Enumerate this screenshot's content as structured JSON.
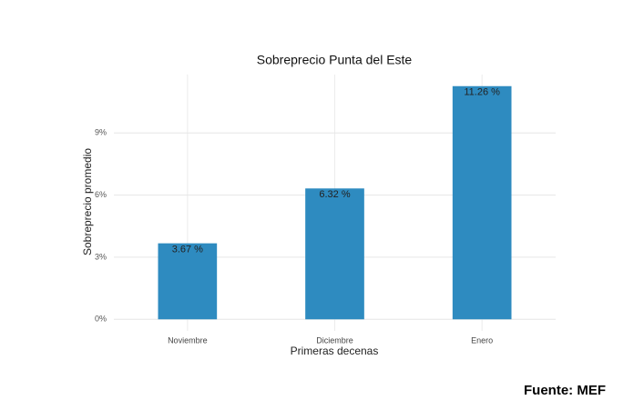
{
  "chart_data": {
    "type": "bar",
    "title": "Sobreprecio Punta del Este",
    "x_label": "Primeras decenas",
    "y_label": "Sobreprecio promedio",
    "categories": [
      "Noviembre",
      "Diciembre",
      "Enero"
    ],
    "values": [
      3.67,
      6.32,
      11.26
    ],
    "value_labels": [
      "3.67 %",
      "6.32 %",
      "11.26 %"
    ],
    "color": "#2e8bc0",
    "ylim": [
      -0.56,
      11.82
    ],
    "yticks": [
      {
        "value": 0,
        "label": "0%"
      },
      {
        "value": 3,
        "label": "3%"
      },
      {
        "value": 6,
        "label": "6%"
      },
      {
        "value": 9,
        "label": "9%"
      }
    ],
    "grid": true,
    "source": "Fuente: MEF"
  }
}
